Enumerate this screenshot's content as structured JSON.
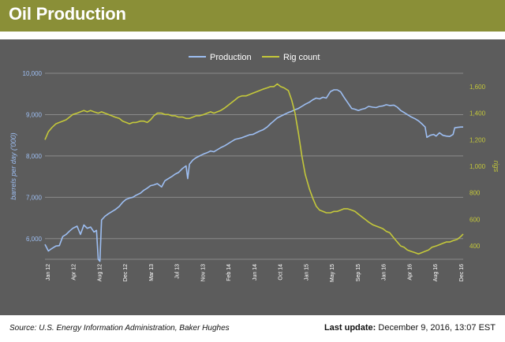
{
  "header": {
    "title": "Oil Production"
  },
  "footer": {
    "source": "Source: U.S. Energy Information Administration, Baker Hughes",
    "update_label": "Last update:",
    "update_value": "December 9, 2016, 13:07 EST"
  },
  "colors": {
    "header_bg": "#8a8f37",
    "plot_bg": "#5c5c5c",
    "production": "#9dbef2",
    "rig_count": "#c4c83a",
    "left_axis_text": "#9dbef2",
    "right_axis_text": "#c4c83a"
  },
  "chart_data": {
    "type": "line",
    "title": "",
    "xlabel": "",
    "ylabel_left": "barrels per day ('000)",
    "ylabel_right": "rigs",
    "legend_position": "top-center",
    "grid": true,
    "x_ticks": [
      "Jan 12",
      "Apr 12",
      "Aug 12",
      "Dec 12",
      "Mar 13",
      "Jul 13",
      "Nov 13",
      "Feb 14",
      "Jun 14",
      "Oct 14",
      "Jan 15",
      "May 15",
      "Sep 15",
      "Jan 16",
      "Apr 16",
      "Aug 16",
      "Dec 16"
    ],
    "y_left": {
      "min": 5500,
      "max": 10000,
      "ticks": [
        "6,000",
        "7,000",
        "8,000",
        "9,000",
        "10,000"
      ],
      "tick_values": [
        6000,
        7000,
        8000,
        9000,
        10000
      ]
    },
    "y_right": {
      "min": 300,
      "max": 1700,
      "ticks": [
        "400",
        "600",
        "800",
        "1,000",
        "1,200",
        "1,400",
        "1,600"
      ],
      "tick_values": [
        400,
        600,
        800,
        1000,
        1200,
        1400,
        1600
      ]
    },
    "x_range": [
      2012.0,
      2016.95
    ],
    "series": [
      {
        "name": "Production",
        "axis": "left",
        "points": [
          [
            2012.0,
            5860
          ],
          [
            2012.04,
            5700
          ],
          [
            2012.08,
            5760
          ],
          [
            2012.13,
            5820
          ],
          [
            2012.17,
            5830
          ],
          [
            2012.21,
            6050
          ],
          [
            2012.25,
            6100
          ],
          [
            2012.29,
            6180
          ],
          [
            2012.33,
            6250
          ],
          [
            2012.38,
            6300
          ],
          [
            2012.42,
            6100
          ],
          [
            2012.46,
            6330
          ],
          [
            2012.5,
            6250
          ],
          [
            2012.54,
            6280
          ],
          [
            2012.58,
            6160
          ],
          [
            2012.61,
            6200
          ],
          [
            2012.63,
            5500
          ],
          [
            2012.65,
            5450
          ],
          [
            2012.67,
            6450
          ],
          [
            2012.71,
            6540
          ],
          [
            2012.75,
            6600
          ],
          [
            2012.79,
            6650
          ],
          [
            2012.83,
            6700
          ],
          [
            2012.88,
            6780
          ],
          [
            2012.92,
            6880
          ],
          [
            2012.96,
            6950
          ],
          [
            2013.0,
            6980
          ],
          [
            2013.04,
            7000
          ],
          [
            2013.08,
            7050
          ],
          [
            2013.13,
            7100
          ],
          [
            2013.17,
            7170
          ],
          [
            2013.21,
            7220
          ],
          [
            2013.25,
            7280
          ],
          [
            2013.29,
            7300
          ],
          [
            2013.33,
            7330
          ],
          [
            2013.38,
            7250
          ],
          [
            2013.42,
            7400
          ],
          [
            2013.46,
            7450
          ],
          [
            2013.5,
            7500
          ],
          [
            2013.54,
            7560
          ],
          [
            2013.58,
            7600
          ],
          [
            2013.63,
            7700
          ],
          [
            2013.67,
            7760
          ],
          [
            2013.69,
            7450
          ],
          [
            2013.71,
            7800
          ],
          [
            2013.75,
            7900
          ],
          [
            2013.79,
            7960
          ],
          [
            2013.83,
            8000
          ],
          [
            2013.88,
            8050
          ],
          [
            2013.92,
            8080
          ],
          [
            2013.96,
            8120
          ],
          [
            2014.0,
            8100
          ],
          [
            2014.04,
            8150
          ],
          [
            2014.08,
            8200
          ],
          [
            2014.13,
            8250
          ],
          [
            2014.17,
            8300
          ],
          [
            2014.21,
            8350
          ],
          [
            2014.25,
            8400
          ],
          [
            2014.29,
            8420
          ],
          [
            2014.33,
            8440
          ],
          [
            2014.38,
            8480
          ],
          [
            2014.42,
            8510
          ],
          [
            2014.46,
            8520
          ],
          [
            2014.5,
            8560
          ],
          [
            2014.54,
            8600
          ],
          [
            2014.58,
            8630
          ],
          [
            2014.63,
            8700
          ],
          [
            2014.67,
            8780
          ],
          [
            2014.71,
            8850
          ],
          [
            2014.75,
            8920
          ],
          [
            2014.79,
            8960
          ],
          [
            2014.83,
            9000
          ],
          [
            2014.88,
            9050
          ],
          [
            2014.92,
            9080
          ],
          [
            2014.96,
            9120
          ],
          [
            2015.0,
            9150
          ],
          [
            2015.04,
            9200
          ],
          [
            2015.08,
            9250
          ],
          [
            2015.13,
            9300
          ],
          [
            2015.17,
            9360
          ],
          [
            2015.21,
            9400
          ],
          [
            2015.25,
            9380
          ],
          [
            2015.29,
            9420
          ],
          [
            2015.33,
            9400
          ],
          [
            2015.38,
            9560
          ],
          [
            2015.42,
            9600
          ],
          [
            2015.46,
            9600
          ],
          [
            2015.5,
            9550
          ],
          [
            2015.54,
            9420
          ],
          [
            2015.58,
            9300
          ],
          [
            2015.63,
            9150
          ],
          [
            2015.67,
            9130
          ],
          [
            2015.71,
            9100
          ],
          [
            2015.75,
            9130
          ],
          [
            2015.79,
            9150
          ],
          [
            2015.83,
            9200
          ],
          [
            2015.88,
            9180
          ],
          [
            2015.92,
            9170
          ],
          [
            2015.96,
            9200
          ],
          [
            2016.0,
            9210
          ],
          [
            2016.04,
            9240
          ],
          [
            2016.08,
            9220
          ],
          [
            2016.13,
            9230
          ],
          [
            2016.17,
            9180
          ],
          [
            2016.21,
            9100
          ],
          [
            2016.25,
            9050
          ],
          [
            2016.29,
            9000
          ],
          [
            2016.33,
            8950
          ],
          [
            2016.38,
            8900
          ],
          [
            2016.42,
            8850
          ],
          [
            2016.46,
            8780
          ],
          [
            2016.5,
            8700
          ],
          [
            2016.52,
            8450
          ],
          [
            2016.56,
            8500
          ],
          [
            2016.6,
            8520
          ],
          [
            2016.63,
            8480
          ],
          [
            2016.67,
            8560
          ],
          [
            2016.71,
            8500
          ],
          [
            2016.75,
            8480
          ],
          [
            2016.79,
            8470
          ],
          [
            2016.83,
            8520
          ],
          [
            2016.85,
            8680
          ],
          [
            2016.88,
            8690
          ],
          [
            2016.92,
            8700
          ],
          [
            2016.95,
            8700
          ]
        ]
      },
      {
        "name": "Rig count",
        "axis": "right",
        "points": [
          [
            2012.0,
            1200
          ],
          [
            2012.04,
            1260
          ],
          [
            2012.08,
            1290
          ],
          [
            2012.13,
            1320
          ],
          [
            2012.17,
            1330
          ],
          [
            2012.21,
            1340
          ],
          [
            2012.25,
            1350
          ],
          [
            2012.29,
            1370
          ],
          [
            2012.33,
            1390
          ],
          [
            2012.38,
            1400
          ],
          [
            2012.42,
            1410
          ],
          [
            2012.46,
            1420
          ],
          [
            2012.5,
            1410
          ],
          [
            2012.54,
            1420
          ],
          [
            2012.58,
            1410
          ],
          [
            2012.63,
            1400
          ],
          [
            2012.67,
            1410
          ],
          [
            2012.71,
            1400
          ],
          [
            2012.75,
            1390
          ],
          [
            2012.79,
            1380
          ],
          [
            2012.83,
            1370
          ],
          [
            2012.88,
            1360
          ],
          [
            2012.92,
            1340
          ],
          [
            2012.96,
            1330
          ],
          [
            2013.0,
            1320
          ],
          [
            2013.04,
            1330
          ],
          [
            2013.08,
            1330
          ],
          [
            2013.13,
            1340
          ],
          [
            2013.17,
            1340
          ],
          [
            2013.21,
            1330
          ],
          [
            2013.25,
            1350
          ],
          [
            2013.29,
            1380
          ],
          [
            2013.33,
            1400
          ],
          [
            2013.38,
            1400
          ],
          [
            2013.42,
            1390
          ],
          [
            2013.46,
            1390
          ],
          [
            2013.5,
            1380
          ],
          [
            2013.54,
            1380
          ],
          [
            2013.58,
            1370
          ],
          [
            2013.63,
            1370
          ],
          [
            2013.67,
            1360
          ],
          [
            2013.71,
            1360
          ],
          [
            2013.75,
            1370
          ],
          [
            2013.79,
            1380
          ],
          [
            2013.83,
            1380
          ],
          [
            2013.88,
            1390
          ],
          [
            2013.92,
            1400
          ],
          [
            2013.96,
            1410
          ],
          [
            2014.0,
            1400
          ],
          [
            2014.04,
            1410
          ],
          [
            2014.08,
            1420
          ],
          [
            2014.13,
            1440
          ],
          [
            2014.17,
            1460
          ],
          [
            2014.21,
            1480
          ],
          [
            2014.25,
            1500
          ],
          [
            2014.29,
            1520
          ],
          [
            2014.33,
            1530
          ],
          [
            2014.38,
            1530
          ],
          [
            2014.42,
            1540
          ],
          [
            2014.46,
            1550
          ],
          [
            2014.5,
            1560
          ],
          [
            2014.54,
            1570
          ],
          [
            2014.58,
            1580
          ],
          [
            2014.63,
            1590
          ],
          [
            2014.67,
            1600
          ],
          [
            2014.71,
            1600
          ],
          [
            2014.75,
            1620
          ],
          [
            2014.79,
            1600
          ],
          [
            2014.83,
            1590
          ],
          [
            2014.88,
            1570
          ],
          [
            2014.92,
            1500
          ],
          [
            2014.96,
            1400
          ],
          [
            2015.0,
            1250
          ],
          [
            2015.04,
            1080
          ],
          [
            2015.08,
            940
          ],
          [
            2015.13,
            830
          ],
          [
            2015.17,
            760
          ],
          [
            2015.21,
            700
          ],
          [
            2015.25,
            670
          ],
          [
            2015.29,
            660
          ],
          [
            2015.33,
            650
          ],
          [
            2015.38,
            650
          ],
          [
            2015.42,
            660
          ],
          [
            2015.46,
            660
          ],
          [
            2015.5,
            670
          ],
          [
            2015.54,
            680
          ],
          [
            2015.58,
            680
          ],
          [
            2015.63,
            670
          ],
          [
            2015.67,
            660
          ],
          [
            2015.71,
            640
          ],
          [
            2015.75,
            620
          ],
          [
            2015.79,
            600
          ],
          [
            2015.83,
            580
          ],
          [
            2015.88,
            560
          ],
          [
            2015.92,
            550
          ],
          [
            2015.96,
            540
          ],
          [
            2016.0,
            530
          ],
          [
            2016.04,
            510
          ],
          [
            2016.08,
            500
          ],
          [
            2016.13,
            460
          ],
          [
            2016.17,
            430
          ],
          [
            2016.21,
            400
          ],
          [
            2016.25,
            390
          ],
          [
            2016.29,
            370
          ],
          [
            2016.33,
            360
          ],
          [
            2016.38,
            350
          ],
          [
            2016.42,
            340
          ],
          [
            2016.46,
            350
          ],
          [
            2016.5,
            360
          ],
          [
            2016.54,
            370
          ],
          [
            2016.58,
            390
          ],
          [
            2016.63,
            400
          ],
          [
            2016.67,
            410
          ],
          [
            2016.71,
            420
          ],
          [
            2016.75,
            430
          ],
          [
            2016.79,
            430
          ],
          [
            2016.83,
            440
          ],
          [
            2016.88,
            450
          ],
          [
            2016.92,
            470
          ],
          [
            2016.95,
            490
          ]
        ]
      }
    ]
  }
}
